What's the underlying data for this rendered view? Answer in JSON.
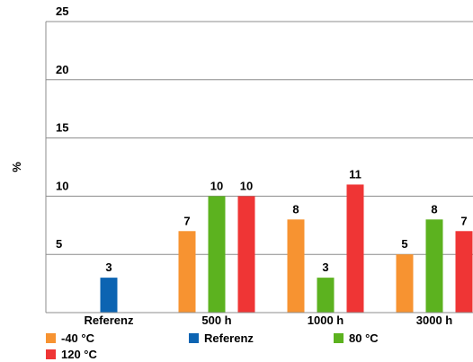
{
  "chart_data": {
    "type": "bar",
    "ylabel": "%",
    "ylim": [
      0,
      25
    ],
    "yticks": [
      5,
      10,
      15,
      20,
      25
    ],
    "grid": true,
    "categories": [
      "Referenz",
      "500 h",
      "1000 h",
      "3000 h"
    ],
    "series": [
      {
        "name": "-40 °C",
        "color": "#f79331",
        "values": [
          null,
          7,
          8,
          5
        ]
      },
      {
        "name": "Referenz",
        "color": "#0c64b2",
        "values": [
          3,
          null,
          null,
          null
        ]
      },
      {
        "name": "80 °C",
        "color": "#5cb21f",
        "values": [
          null,
          10,
          3,
          8
        ]
      },
      {
        "name": "120 °C",
        "color": "#ef3535",
        "values": [
          null,
          10,
          11,
          7
        ]
      }
    ],
    "legend_position": "bottom"
  }
}
